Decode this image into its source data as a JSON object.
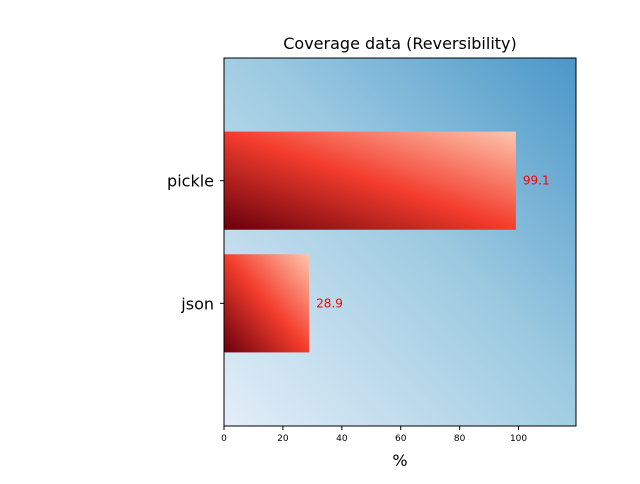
{
  "chart_data": {
    "type": "bar",
    "orientation": "horizontal",
    "title": "Coverage data (Reversibility)",
    "xlabel": "%",
    "ylabel": "",
    "categories": [
      "json",
      "pickle"
    ],
    "values": [
      28.9,
      99.1
    ],
    "value_labels": [
      "28.9",
      "99.1"
    ],
    "xlim": [
      0,
      119.5
    ],
    "xticks": [
      0,
      20,
      40,
      60,
      80,
      100
    ],
    "grid": false,
    "legend": "none",
    "colors": {
      "background_top": "#4b97c9",
      "background_bottom": "#e3eef8",
      "bar_dark": "#67000d",
      "bar_mid": "#f33c2c",
      "bar_light": "#fdc6ad",
      "value_label": "#ff0000"
    }
  }
}
